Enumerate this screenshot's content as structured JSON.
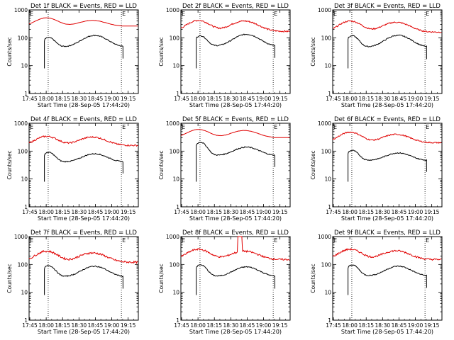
{
  "chart_data": {
    "type": "line",
    "layout": "3x3 grid",
    "y_scale": "log",
    "ylim": [
      1,
      1000
    ],
    "y_ticks": [
      "1",
      "10",
      "100",
      "1000"
    ],
    "ylabel": "Counts/sec",
    "xlabel": "Start Time (28-Sep-05 17:44:20)",
    "x_ticks": [
      "17:45",
      "18:00",
      "18:15",
      "18:30",
      "18:45",
      "19:00",
      "19:15"
    ],
    "x_tick_minutes": [
      0.67,
      15.67,
      30.67,
      45.67,
      60.67,
      75.67,
      90.67
    ],
    "x_range_minutes": [
      0,
      100
    ],
    "flag_label": "E",
    "vlines_minutes": [
      17.5,
      84.5
    ],
    "series_colors": {
      "events": "#000000",
      "lld": "#e00000"
    },
    "panels": [
      {
        "title": "Det 1f BLACK = Events, RED = LLD",
        "lld": {
          "base": 260,
          "peak1": 520,
          "peak2": 420,
          "amp": 0.01,
          "clip": 265
        },
        "events": {
          "base": 85,
          "peak1": 95,
          "peak2": 115,
          "dip": 40
        }
      },
      {
        "title": "Det 2f BLACK = Events, RED = LLD",
        "lld": {
          "base": 170,
          "peak1": 420,
          "peak2": 400,
          "amp": 0.06
        },
        "events": {
          "base": 95,
          "peak1": 110,
          "peak2": 125,
          "dip": 42
        }
      },
      {
        "title": "Det 3f BLACK = Events, RED = LLD",
        "lld": {
          "base": 160,
          "peak1": 400,
          "peak2": 360,
          "amp": 0.05
        },
        "events": {
          "base": 90,
          "peak1": 110,
          "peak2": 115,
          "dip": 38
        }
      },
      {
        "title": "Det 4f BLACK = Events, RED = LLD",
        "lld": {
          "base": 160,
          "peak1": 340,
          "peak2": 320,
          "amp": 0.06
        },
        "events": {
          "base": 70,
          "peak1": 85,
          "peak2": 75,
          "dip": 35
        }
      },
      {
        "title": "Det 5f BLACK = Events, RED = LLD",
        "lld": {
          "base": 300,
          "peak1": 600,
          "peak2": 550,
          "amp": 0.01,
          "clip": 305
        },
        "events": {
          "base": 120,
          "peak1": 200,
          "peak2": 130,
          "dip": 60
        }
      },
      {
        "title": "Det 6f BLACK = Events, RED = LLD",
        "lld": {
          "base": 200,
          "peak1": 480,
          "peak2": 400,
          "amp": 0.05
        },
        "events": {
          "base": 80,
          "peak1": 100,
          "peak2": 80,
          "dip": 40
        }
      },
      {
        "title": "Det 7f BLACK = Events, RED = LLD",
        "lld": {
          "base": 120,
          "peak1": 300,
          "peak2": 260,
          "amp": 0.08
        },
        "events": {
          "base": 70,
          "peak1": 85,
          "peak2": 80,
          "dip": 30
        }
      },
      {
        "title": "Det 8f BLACK = Events, RED = LLD",
        "lld": {
          "base": 150,
          "peak1": 350,
          "peak2": 300,
          "amp": 0.07,
          "spike": [
            52,
            56,
            1000
          ]
        },
        "events": {
          "base": 75,
          "peak1": 90,
          "peak2": 75,
          "dip": 30
        }
      },
      {
        "title": "Det 9f BLACK = Events, RED = LLD",
        "lld": {
          "base": 150,
          "peak1": 350,
          "peak2": 310,
          "amp": 0.07
        },
        "events": {
          "base": 75,
          "peak1": 90,
          "peak2": 80,
          "dip": 32
        }
      }
    ]
  }
}
